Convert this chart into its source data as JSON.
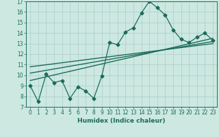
{
  "title": "",
  "xlabel": "Humidex (Indice chaleur)",
  "ylabel": "",
  "bg_color": "#cce8e0",
  "grid_color": "#aacccc",
  "line_color": "#1a6b5a",
  "data_x": [
    0,
    1,
    2,
    3,
    4,
    5,
    6,
    7,
    8,
    9,
    10,
    11,
    12,
    13,
    14,
    15,
    16,
    17,
    18,
    19,
    20,
    21,
    22,
    23
  ],
  "data_y": [
    9.0,
    7.5,
    10.1,
    9.3,
    9.5,
    7.8,
    8.9,
    8.5,
    7.8,
    9.9,
    13.1,
    12.9,
    14.1,
    14.5,
    15.9,
    17.0,
    16.4,
    15.7,
    14.3,
    13.4,
    13.1,
    13.6,
    14.0,
    13.3
  ],
  "trend_lines": [
    {
      "x": [
        0,
        23
      ],
      "y": [
        9.5,
        13.5
      ]
    },
    {
      "x": [
        0,
        23
      ],
      "y": [
        10.2,
        13.2
      ]
    },
    {
      "x": [
        0,
        23
      ],
      "y": [
        10.8,
        13.0
      ]
    }
  ],
  "ylim": [
    7,
    17
  ],
  "xlim": [
    -0.5,
    23.5
  ],
  "yticks": [
    7,
    8,
    9,
    10,
    11,
    12,
    13,
    14,
    15,
    16,
    17
  ],
  "xticks": [
    0,
    1,
    2,
    3,
    4,
    5,
    6,
    7,
    8,
    9,
    10,
    11,
    12,
    13,
    14,
    15,
    16,
    17,
    18,
    19,
    20,
    21,
    22,
    23
  ],
  "tick_fontsize": 5.5,
  "xlabel_fontsize": 6.5
}
